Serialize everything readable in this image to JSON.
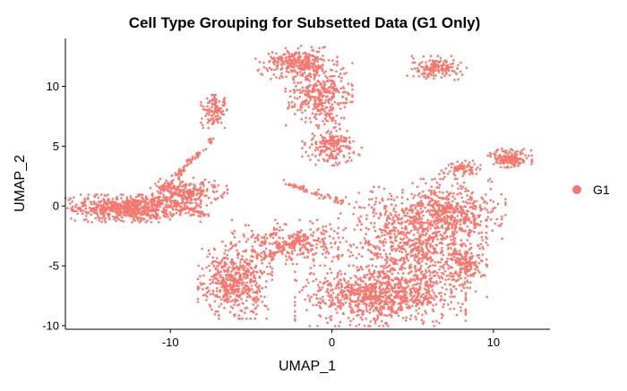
{
  "chart_data": {
    "type": "scatter",
    "title": "Cell Type Grouping for Subsetted Data (G1 Only)",
    "xlabel": "UMAP_1",
    "ylabel": "UMAP_2",
    "xlim": [
      -16.5,
      13.5
    ],
    "ylim": [
      -10.3,
      14.0
    ],
    "x_ticks": [
      -10,
      0,
      10
    ],
    "y_ticks": [
      -10,
      -5,
      0,
      5,
      10
    ],
    "grid": false,
    "legend_position": "right",
    "series": [
      {
        "name": "G1",
        "color": "#F8766D",
        "clusters": [
          {
            "cx": -12.5,
            "cy": -0.2,
            "sx": 1.9,
            "sy": 0.5,
            "n": 700
          },
          {
            "cx": -9.0,
            "cy": 1.2,
            "sx": 1.1,
            "sy": 0.5,
            "n": 240
          },
          {
            "cx": -7.3,
            "cy": 7.9,
            "sx": 0.35,
            "sy": 0.6,
            "n": 120
          },
          {
            "cx": -6.0,
            "cy": -6.2,
            "sx": 1.0,
            "sy": 1.4,
            "n": 520
          },
          {
            "cx": -2.2,
            "cy": 12.0,
            "sx": 1.1,
            "sy": 0.6,
            "n": 280
          },
          {
            "cx": -0.8,
            "cy": 9.5,
            "sx": 0.9,
            "sy": 1.2,
            "n": 320
          },
          {
            "cx": 0.0,
            "cy": 5.0,
            "sx": 0.8,
            "sy": 0.7,
            "n": 200
          },
          {
            "cx": -2.5,
            "cy": -3.0,
            "sx": 1.6,
            "sy": 0.8,
            "n": 280
          },
          {
            "cx": 3.0,
            "cy": -7.5,
            "sx": 2.3,
            "sy": 1.1,
            "n": 900
          },
          {
            "cx": 5.0,
            "cy": -3.0,
            "sx": 2.0,
            "sy": 2.0,
            "n": 850
          },
          {
            "cx": 7.3,
            "cy": -0.5,
            "sx": 1.5,
            "sy": 1.2,
            "n": 420
          },
          {
            "cx": 8.2,
            "cy": -5.0,
            "sx": 0.6,
            "sy": 0.8,
            "n": 160
          },
          {
            "cx": 6.5,
            "cy": 11.5,
            "sx": 0.8,
            "sy": 0.45,
            "n": 150
          },
          {
            "cx": 11.0,
            "cy": 4.0,
            "sx": 0.6,
            "sy": 0.35,
            "n": 160
          },
          {
            "cx": 8.2,
            "cy": 3.1,
            "sx": 0.5,
            "sy": 0.3,
            "n": 60
          }
        ],
        "filaments": [
          {
            "from": [
              -10.5,
              1.3
            ],
            "to": [
              -7.4,
              5.6
            ],
            "n": 90
          },
          {
            "from": [
              -10.5,
              0.5
            ],
            "to": [
              -7.7,
              -0.7
            ],
            "n": 50
          },
          {
            "from": [
              -3.0,
              2.0
            ],
            "to": [
              1.0,
              0.2
            ],
            "n": 60
          },
          {
            "from": [
              -1.0,
              9.0
            ],
            "to": [
              0.5,
              6.5
            ],
            "n": 35
          },
          {
            "from": [
              -4.5,
              -4.5
            ],
            "to": [
              -1.5,
              -2.5
            ],
            "n": 60
          },
          {
            "from": [
              6.5,
              2.5
            ],
            "to": [
              8.5,
              3.5
            ],
            "n": 20
          }
        ]
      }
    ]
  }
}
